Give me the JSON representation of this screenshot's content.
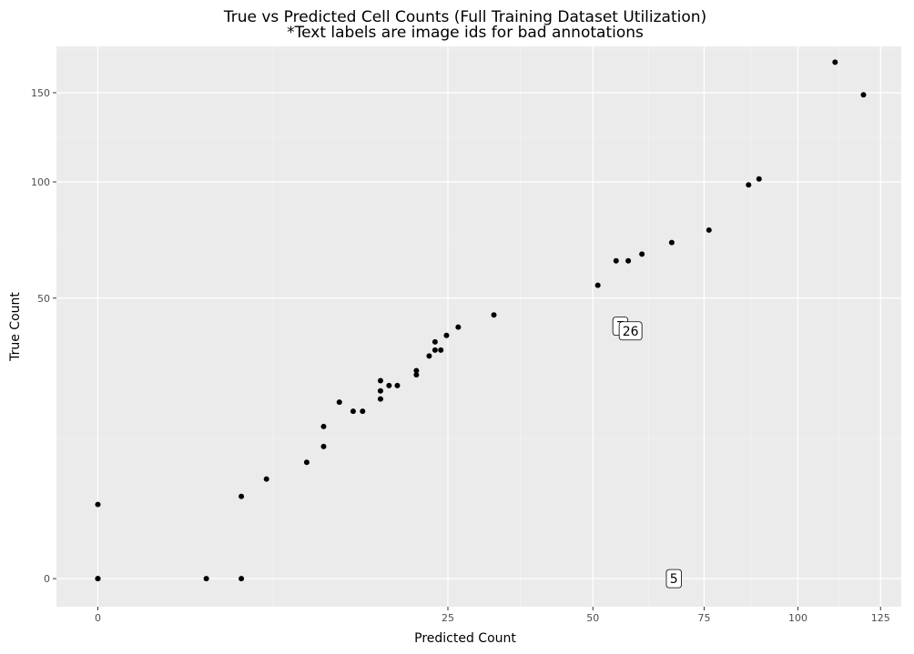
{
  "chart_data": {
    "type": "scatter",
    "title": "True vs Predicted Cell Counts (Full Training Dataset Utilization)",
    "subtitle": "*Text labels are image ids for bad annotations",
    "xlabel": "Predicted Count",
    "ylabel": "True Count",
    "scale": "sqrt",
    "x_ticks": [
      0,
      25,
      50,
      75,
      100,
      125
    ],
    "y_ticks": [
      0,
      50,
      100,
      150
    ],
    "xlim": [
      -0.35,
      131.7
    ],
    "ylim": [
      -0.5,
      180
    ],
    "grid": true,
    "points": [
      {
        "x": 0,
        "y": 0
      },
      {
        "x": 0,
        "y": 0
      },
      {
        "x": 0,
        "y": 3.5
      },
      {
        "x": 2.4,
        "y": 0
      },
      {
        "x": 4.2,
        "y": 0
      },
      {
        "x": 4.2,
        "y": 4.3
      },
      {
        "x": 5.8,
        "y": 6.3
      },
      {
        "x": 8.9,
        "y": 8.6
      },
      {
        "x": 10.4,
        "y": 11.1
      },
      {
        "x": 10.4,
        "y": 14.7
      },
      {
        "x": 11.9,
        "y": 19.8
      },
      {
        "x": 13.3,
        "y": 17.8
      },
      {
        "x": 14.3,
        "y": 17.8
      },
      {
        "x": 16.3,
        "y": 20.5
      },
      {
        "x": 16.3,
        "y": 22.4
      },
      {
        "x": 16.3,
        "y": 24.9
      },
      {
        "x": 17.3,
        "y": 23.7
      },
      {
        "x": 18.3,
        "y": 23.7
      },
      {
        "x": 20.7,
        "y": 26.4
      },
      {
        "x": 20.7,
        "y": 27.5
      },
      {
        "x": 22.4,
        "y": 31.5
      },
      {
        "x": 23.2,
        "y": 33.2
      },
      {
        "x": 23.2,
        "y": 35.6
      },
      {
        "x": 24.0,
        "y": 33.2
      },
      {
        "x": 24.8,
        "y": 37.6
      },
      {
        "x": 26.5,
        "y": 40.2
      },
      {
        "x": 32.0,
        "y": 44.2
      },
      {
        "x": 51.0,
        "y": 54.7
      },
      {
        "x": 54.8,
        "y": 64.2
      },
      {
        "x": 57.4,
        "y": 64.2
      },
      {
        "x": 60.4,
        "y": 66.9
      },
      {
        "x": 67.2,
        "y": 71.8
      },
      {
        "x": 76.2,
        "y": 77.2
      },
      {
        "x": 86.4,
        "y": 98.5
      },
      {
        "x": 89.2,
        "y": 101.5
      },
      {
        "x": 110.9,
        "y": 169.5
      },
      {
        "x": 119.6,
        "y": 148.7
      }
    ],
    "annotations": [
      {
        "text": "7",
        "x": 55.7,
        "y": 40.5
      },
      {
        "text": "26",
        "x": 57.9,
        "y": 39.0
      },
      {
        "text": "5",
        "x": 67.7,
        "y": 0
      }
    ]
  }
}
